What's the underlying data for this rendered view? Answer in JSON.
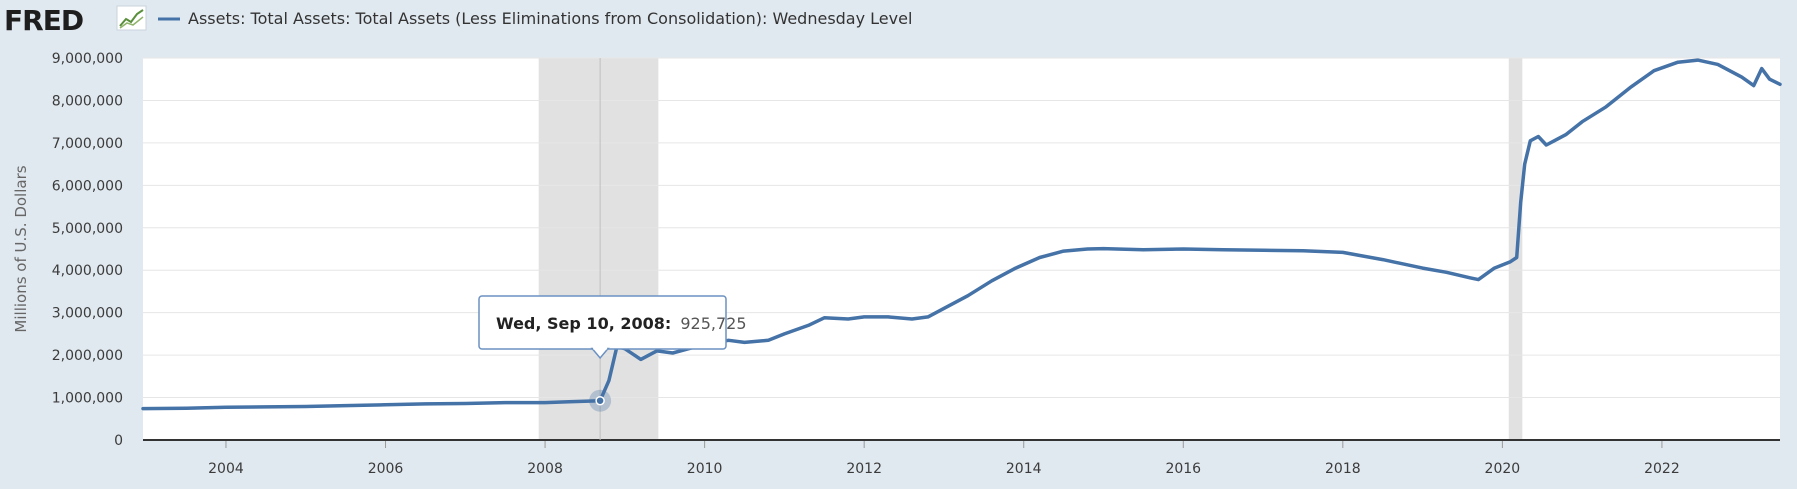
{
  "header": {
    "logo_text": "FRED",
    "logo_icon": "trend-chart-icon",
    "legend_label": "Assets: Total Assets: Total Assets (Less Eliminations from Consolidation): Wednesday Level",
    "legend_color": "#4572a7"
  },
  "tooltip": {
    "date_label": "Wed, Sep 10, 2008:",
    "value_label": "925,725",
    "x": 2008.69,
    "y": 925725
  },
  "chart_data": {
    "type": "line",
    "title": "",
    "xlabel": "",
    "ylabel": "Millions of U.S. Dollars",
    "xlim": [
      2002.96,
      2023.48
    ],
    "ylim": [
      0,
      9000000
    ],
    "grid": true,
    "colors": {
      "series": "#4572a7",
      "recession": "#e1e1e1",
      "background": "#e1e9f0"
    },
    "x_ticks": [
      2004,
      2006,
      2008,
      2010,
      2012,
      2014,
      2016,
      2018,
      2020,
      2022
    ],
    "x_tick_labels": [
      "2004",
      "2006",
      "2008",
      "2010",
      "2012",
      "2014",
      "2016",
      "2018",
      "2020",
      "2022"
    ],
    "y_ticks": [
      0,
      1000000,
      2000000,
      3000000,
      4000000,
      5000000,
      6000000,
      7000000,
      8000000,
      9000000
    ],
    "y_tick_labels": [
      "0",
      "1,000,000",
      "2,000,000",
      "3,000,000",
      "4,000,000",
      "5,000,000",
      "6,000,000",
      "7,000,000",
      "8,000,000",
      "9,000,000"
    ],
    "recessions": [
      [
        2007.92,
        2009.42
      ],
      [
        2020.08,
        2020.25
      ]
    ],
    "series": [
      {
        "name": "Assets: Total Assets: Total Assets (Less Eliminations from Consolidation): Wednesday Level",
        "x": [
          2002.96,
          2003.5,
          2004.0,
          2004.5,
          2005.0,
          2005.5,
          2006.0,
          2006.5,
          2007.0,
          2007.5,
          2008.0,
          2008.3,
          2008.69,
          2008.8,
          2008.9,
          2009.0,
          2009.2,
          2009.4,
          2009.6,
          2009.8,
          2010.0,
          2010.3,
          2010.5,
          2010.8,
          2011.0,
          2011.3,
          2011.5,
          2011.8,
          2012.0,
          2012.3,
          2012.6,
          2012.8,
          2013.0,
          2013.3,
          2013.6,
          2013.9,
          2014.2,
          2014.5,
          2014.8,
          2015.0,
          2015.5,
          2016.0,
          2016.5,
          2017.0,
          2017.5,
          2018.0,
          2018.5,
          2019.0,
          2019.3,
          2019.6,
          2019.7,
          2019.9,
          2020.1,
          2020.18,
          2020.23,
          2020.28,
          2020.35,
          2020.45,
          2020.55,
          2020.65,
          2020.8,
          2021.0,
          2021.3,
          2021.6,
          2021.9,
          2022.2,
          2022.45,
          2022.7,
          2023.0,
          2023.15,
          2023.25,
          2023.35,
          2023.48
        ],
        "values": [
          740000,
          750000,
          770000,
          780000,
          790000,
          810000,
          830000,
          850000,
          860000,
          880000,
          880000,
          900000,
          925725,
          1400000,
          2200000,
          2150000,
          1900000,
          2100000,
          2050000,
          2150000,
          2250000,
          2350000,
          2300000,
          2350000,
          2500000,
          2700000,
          2880000,
          2850000,
          2900000,
          2900000,
          2850000,
          2900000,
          3100000,
          3400000,
          3750000,
          4050000,
          4300000,
          4450000,
          4500000,
          4510000,
          4480000,
          4500000,
          4480000,
          4470000,
          4460000,
          4420000,
          4250000,
          4050000,
          3950000,
          3820000,
          3780000,
          4050000,
          4200000,
          4300000,
          5600000,
          6500000,
          7050000,
          7150000,
          6950000,
          7050000,
          7200000,
          7500000,
          7850000,
          8300000,
          8700000,
          8900000,
          8950000,
          8850000,
          8550000,
          8350000,
          8750000,
          8500000,
          8380000
        ]
      }
    ]
  }
}
